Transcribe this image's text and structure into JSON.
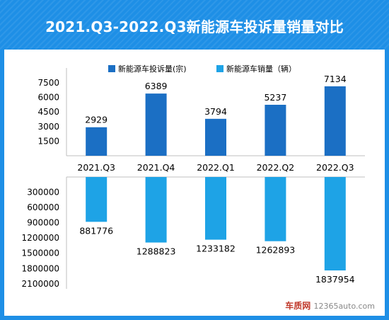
{
  "chart_data": {
    "title": "2021.Q3-2022.Q3新能源车投诉量销量对比",
    "categories": [
      "2021.Q3",
      "2021.Q4",
      "2022.Q1",
      "2022.Q2",
      "2022.Q3"
    ],
    "legend_position": "top",
    "grid": false,
    "upper": {
      "type": "bar",
      "series": [
        {
          "name": "新能源车投诉量(宗)",
          "values": [
            2929,
            6389,
            3794,
            5237,
            7134
          ],
          "color": "#1b6fc4"
        }
      ],
      "ylim": [
        0,
        8000
      ],
      "yticks": [
        1500,
        3000,
        4500,
        6000,
        7500
      ]
    },
    "lower": {
      "type": "bar",
      "orientation": "inverted",
      "series": [
        {
          "name": "新能源车销量（辆）",
          "values": [
            881776,
            1288823,
            1233182,
            1262893,
            1837954
          ],
          "color": "#1ea3e6"
        }
      ],
      "ylim": [
        0,
        2200000
      ],
      "yticks": [
        300000,
        600000,
        900000,
        1200000,
        1500000,
        1800000,
        2100000
      ]
    }
  },
  "watermark": {
    "brand": "车质网",
    "url": "12365auto.com"
  }
}
